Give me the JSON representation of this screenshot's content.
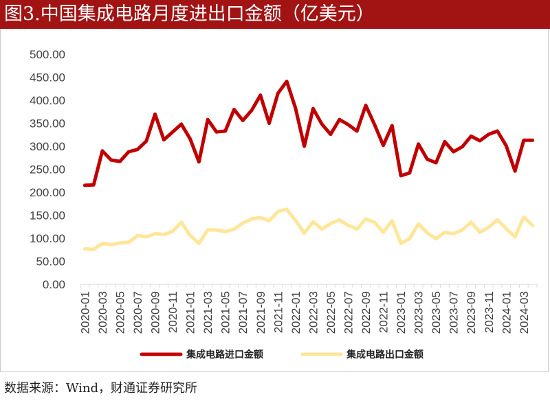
{
  "title": "图3.中国集成电路月度进出口金额（亿美元）",
  "source": "数据来源：Wind，财通证券研究所",
  "colors": {
    "title_bg": "#a21313",
    "import": "#c00000",
    "export": "#ffe699",
    "axis": "#d9d9d9",
    "text": "#404040"
  },
  "chart_data": {
    "type": "line",
    "x": [
      "2020-01",
      "2020-02",
      "2020-03",
      "2020-04",
      "2020-05",
      "2020-06",
      "2020-07",
      "2020-08",
      "2020-09",
      "2020-10",
      "2020-11",
      "2020-12",
      "2021-01",
      "2021-02",
      "2021-03",
      "2021-04",
      "2021-05",
      "2021-06",
      "2021-07",
      "2021-08",
      "2021-09",
      "2021-10",
      "2021-11",
      "2021-12",
      "2022-01",
      "2022-02",
      "2022-03",
      "2022-04",
      "2022-05",
      "2022-06",
      "2022-07",
      "2022-08",
      "2022-09",
      "2022-10",
      "2022-11",
      "2022-12",
      "2023-01",
      "2023-02",
      "2023-03",
      "2023-04",
      "2023-05",
      "2023-06",
      "2023-07",
      "2023-08",
      "2023-09",
      "2023-10",
      "2023-11",
      "2023-12",
      "2024-01",
      "2024-02",
      "2024-03",
      "2024-04"
    ],
    "x_tick_labels": [
      "2020-01",
      "2020-03",
      "2020-05",
      "2020-07",
      "2020-09",
      "2020-11",
      "2021-01",
      "2021-03",
      "2021-05",
      "2021-07",
      "2021-09",
      "2021-11",
      "2022-01",
      "2022-03",
      "2022-05",
      "2022-07",
      "2022-09",
      "2022-11",
      "2023-01",
      "2023-03",
      "2023-05",
      "2023-07",
      "2023-09",
      "2023-11",
      "2024-01",
      "2024-03"
    ],
    "y_tick_labels": [
      "0.00",
      "50.00",
      "100.00",
      "150.00",
      "200.00",
      "250.00",
      "300.00",
      "350.00",
      "400.00",
      "450.00",
      "500.00"
    ],
    "ylim": [
      0,
      500
    ],
    "series": [
      {
        "name": "集成电路进口金额",
        "color": "#c00000",
        "values": [
          215,
          216,
          290,
          270,
          267,
          288,
          293,
          311,
          370,
          314,
          331,
          348,
          316,
          266,
          358,
          331,
          333,
          380,
          356,
          378,
          411,
          350,
          415,
          441,
          383,
          300,
          382,
          348,
          326,
          358,
          347,
          333,
          389,
          347,
          302,
          345,
          236,
          242,
          305,
          272,
          264,
          310,
          288,
          299,
          322,
          312,
          326,
          333,
          301,
          246,
          313,
          313
        ]
      },
      {
        "name": "集成电路出口金额",
        "color": "#ffe699",
        "values": [
          77,
          76,
          89,
          86,
          90,
          91,
          106,
          103,
          110,
          108,
          115,
          135,
          106,
          89,
          118,
          118,
          114,
          120,
          133,
          142,
          145,
          138,
          158,
          163,
          139,
          111,
          136,
          120,
          132,
          140,
          128,
          120,
          142,
          135,
          113,
          138,
          89,
          99,
          131,
          112,
          99,
          113,
          110,
          118,
          135,
          113,
          124,
          140,
          121,
          103,
          146,
          128
        ]
      }
    ],
    "grid": false,
    "legend_position": "bottom"
  }
}
